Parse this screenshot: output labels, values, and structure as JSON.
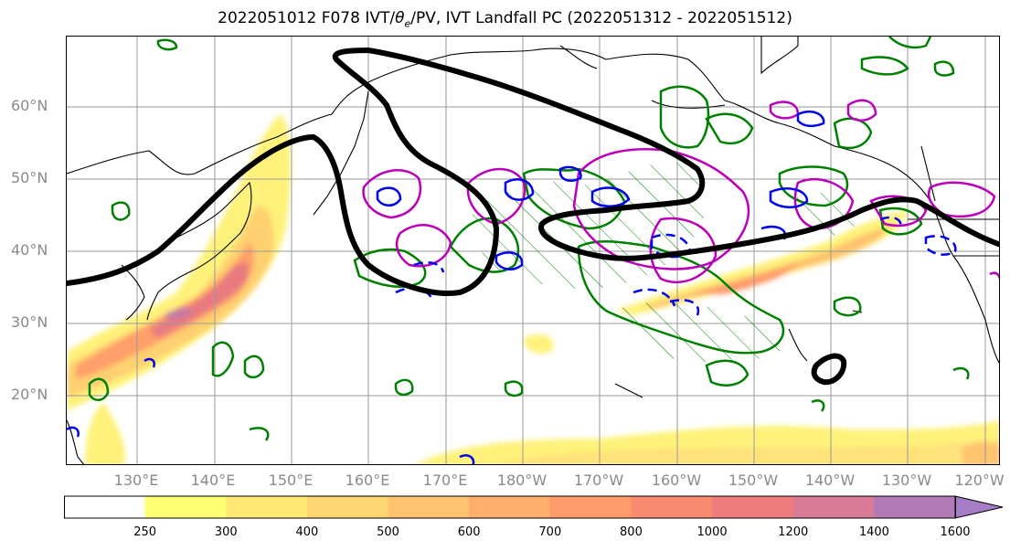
{
  "title": {
    "prefix": "2022051012 F078 IVT/",
    "theta": "θ",
    "theta_sub": "e",
    "suffix": "/PV, IVT Landfall PC (2022051312 - 2022051512)"
  },
  "lat_labels": [
    "60°N",
    "50°N",
    "40°N",
    "30°N",
    "20°N"
  ],
  "lon_labels": [
    "130°E",
    "140°E",
    "150°E",
    "160°E",
    "170°E",
    "180°W",
    "170°W",
    "160°W",
    "150°W",
    "140°W",
    "130°W",
    "120°W"
  ],
  "colorbar": {
    "ticks": [
      "250",
      "300",
      "400",
      "500",
      "600",
      "700",
      "800",
      "1000",
      "1200",
      "1400",
      "1600"
    ],
    "colors": [
      "#ffffff",
      "#ffff74",
      "#ffe874",
      "#ffd670",
      "#ffc26e",
      "#ffae6c",
      "#ff9a6a",
      "#f98a70",
      "#ef7c7c",
      "#d97a96",
      "#b37ab8",
      "#a57cc6"
    ]
  },
  "colors": {
    "ivt_contour": "#000000",
    "theta_e": "#008000",
    "pv_positive": "#bb00bb",
    "pv_negative": "#0000ee",
    "grid": "#999999",
    "coast": "#000000"
  }
}
